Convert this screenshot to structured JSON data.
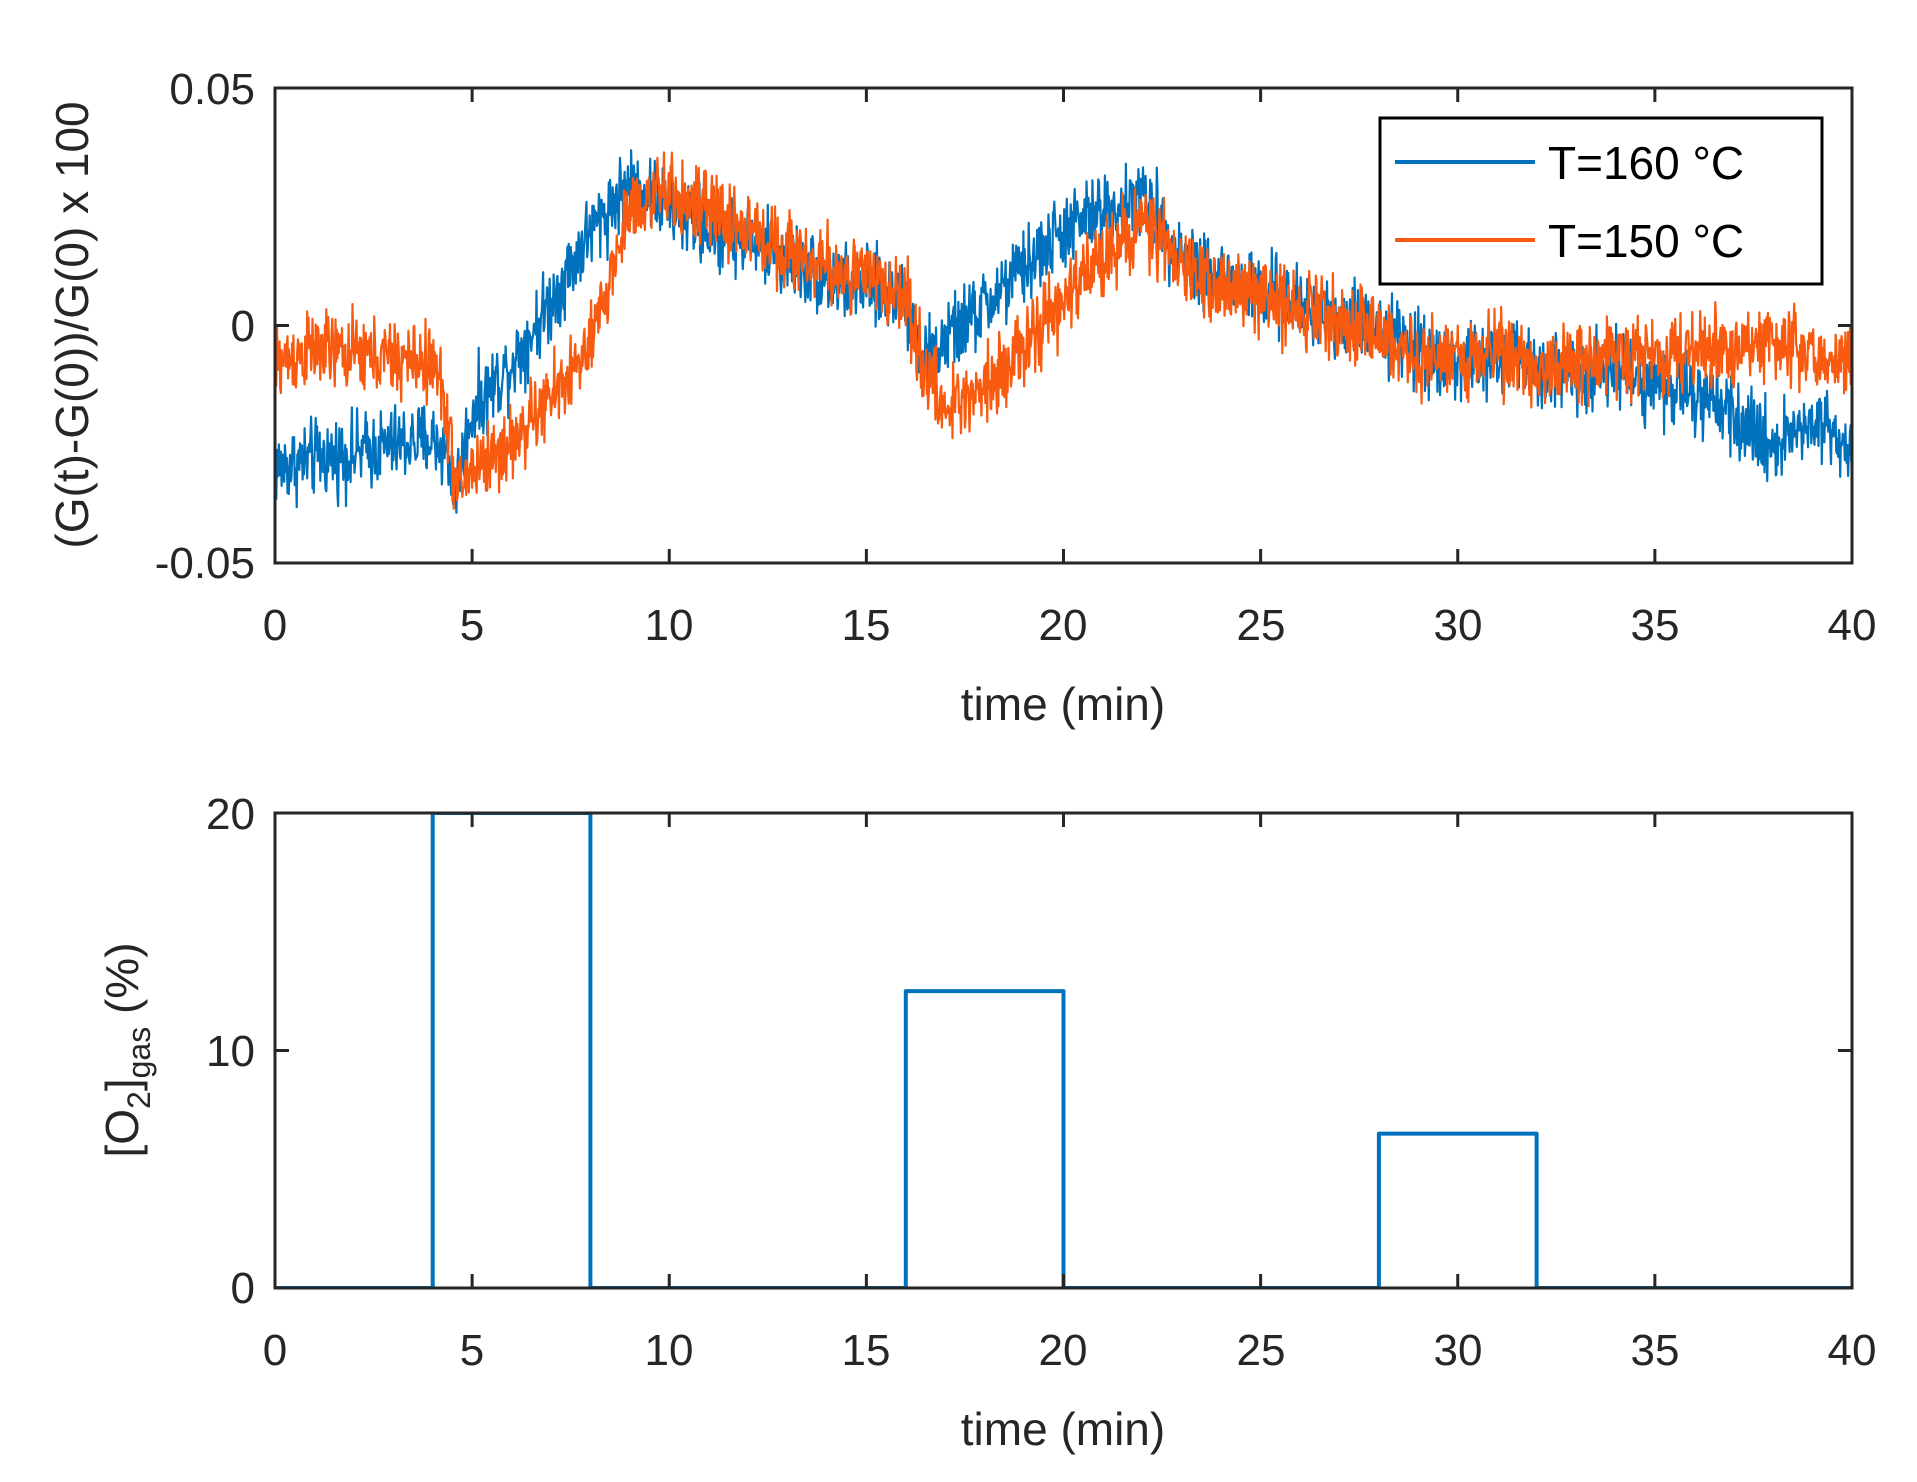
{
  "colors": {
    "series_blue": "#0072BD",
    "series_orange": "#F85A0F",
    "axis": "#262626"
  },
  "chart_data": [
    {
      "type": "line",
      "title": "",
      "xlabel": "time (min)",
      "ylabel": "(G(t)-G(0))/G(0) x 100",
      "xlim": [
        0,
        40
      ],
      "ylim": [
        -0.05,
        0.05
      ],
      "xticks": [
        "0",
        "5",
        "10",
        "15",
        "20",
        "25",
        "30",
        "35",
        "40"
      ],
      "yticks": [
        "-0.05",
        "0",
        "0.05"
      ],
      "legend": "top-right",
      "noise_amplitude": 0.008,
      "series": [
        {
          "name": "T=160 °C",
          "color": "#0072BD",
          "x": [
            0,
            1,
            2,
            3,
            4,
            4.3,
            4.6,
            5,
            6,
            7,
            8,
            9,
            10,
            11,
            12,
            13,
            14,
            15,
            16,
            16.5,
            17,
            18,
            19,
            20,
            21,
            22,
            23,
            24,
            25,
            26,
            27,
            28,
            29,
            30,
            31,
            32,
            33,
            34,
            35,
            36,
            37,
            38,
            39,
            40
          ],
          "y": [
            -0.03,
            -0.028,
            -0.027,
            -0.025,
            -0.024,
            -0.026,
            -0.034,
            -0.018,
            -0.008,
            0.005,
            0.02,
            0.03,
            0.025,
            0.02,
            0.018,
            0.014,
            0.01,
            0.008,
            0.006,
            -0.008,
            -0.003,
            0.004,
            0.012,
            0.02,
            0.024,
            0.027,
            0.015,
            0.01,
            0.007,
            0.004,
            0.002,
            0.0,
            -0.005,
            -0.008,
            -0.007,
            -0.008,
            -0.01,
            -0.009,
            -0.012,
            -0.015,
            -0.02,
            -0.025,
            -0.02,
            -0.025
          ]
        },
        {
          "name": "T=150 °C",
          "color": "#F85A0F",
          "x": [
            0,
            1,
            2,
            3,
            4,
            4.3,
            4.6,
            5,
            6,
            7,
            8,
            9,
            10,
            11,
            12,
            13,
            14,
            15,
            16,
            16.5,
            17,
            18,
            19,
            20,
            21,
            22,
            23,
            24,
            25,
            26,
            27,
            28,
            29,
            30,
            31,
            32,
            33,
            34,
            35,
            36,
            37,
            38,
            39,
            40
          ],
          "y": [
            -0.008,
            -0.005,
            -0.006,
            -0.007,
            -0.008,
            -0.015,
            -0.035,
            -0.03,
            -0.025,
            -0.015,
            -0.005,
            0.025,
            0.028,
            0.024,
            0.02,
            0.016,
            0.012,
            0.01,
            0.006,
            -0.01,
            -0.018,
            -0.012,
            -0.005,
            0.005,
            0.015,
            0.022,
            0.012,
            0.008,
            0.006,
            0.004,
            0.002,
            -0.002,
            -0.008,
            -0.006,
            -0.005,
            -0.009,
            -0.008,
            -0.006,
            -0.007,
            -0.005,
            -0.004,
            -0.003,
            -0.006,
            -0.008
          ]
        }
      ]
    },
    {
      "type": "line",
      "title": "",
      "xlabel": "time (min)",
      "ylabel": "[O2]gas (%)",
      "ylabel_parts": {
        "open": "[O",
        "sub1": "2",
        "close": "]",
        "sub2": "gas",
        "unit": " (%)"
      },
      "xlim": [
        0,
        40
      ],
      "ylim": [
        0,
        20
      ],
      "xticks": [
        "0",
        "5",
        "10",
        "15",
        "20",
        "25",
        "30",
        "35",
        "40"
      ],
      "yticks": [
        "0",
        "10",
        "20"
      ],
      "series": [
        {
          "name": "[O2]gas",
          "color": "#0072BD",
          "x": [
            0,
            4,
            4,
            8,
            8,
            16,
            16,
            20,
            20,
            28,
            28,
            32,
            32,
            40
          ],
          "y": [
            0,
            0,
            20,
            20,
            0,
            0,
            12.5,
            12.5,
            0,
            0,
            6.5,
            6.5,
            0,
            0
          ]
        }
      ]
    }
  ]
}
